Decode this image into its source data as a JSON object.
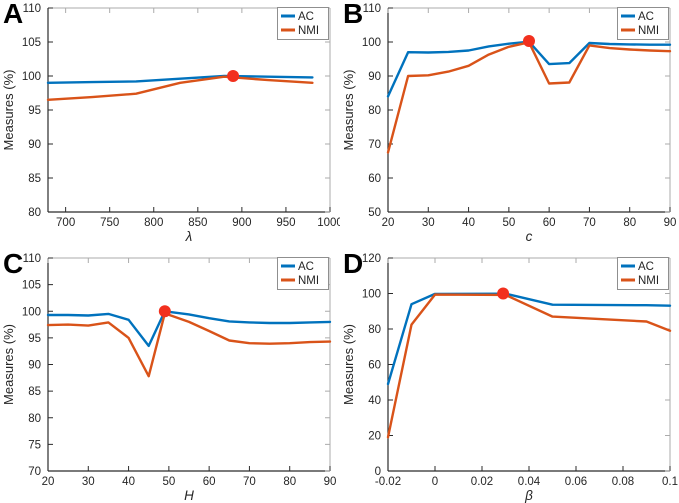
{
  "figure": {
    "background": "#ffffff",
    "description": "Four-panel parameter sensitivity figure, AC and NMI measures vs parameters"
  },
  "colors": {
    "ac_line": "#0072BD",
    "nmi_line": "#D95319",
    "optimum_marker": "#F2301E",
    "axis_dark": "#2b2b2b",
    "axis_light": "#ababab",
    "legend_border": "#8f8f8f",
    "tick_text": "#262626"
  },
  "legend": {
    "position": "top-right",
    "entries": [
      {
        "label": "AC",
        "color": "#0072BD"
      },
      {
        "label": "NMI",
        "color": "#D95319"
      }
    ]
  },
  "chart_data": [
    {
      "letter": "A",
      "type": "line",
      "xlabel": "λ",
      "ylabel": "Measures (%)",
      "xlim": [
        680,
        1000
      ],
      "ylim": [
        80,
        110
      ],
      "xticks": [
        700,
        750,
        800,
        850,
        900,
        950,
        1000
      ],
      "yticks": [
        80,
        85,
        90,
        95,
        100,
        105,
        110
      ],
      "grid": false,
      "x": [
        680,
        730,
        780,
        830,
        880,
        930,
        980
      ],
      "series": [
        {
          "name": "AC",
          "color": "#0072BD",
          "values": [
            99.0,
            99.1,
            99.2,
            99.6,
            100.0,
            99.9,
            99.8
          ]
        },
        {
          "name": "NMI",
          "color": "#D95319",
          "values": [
            96.5,
            96.9,
            97.4,
            99.0,
            99.9,
            99.4,
            99.0
          ]
        }
      ],
      "optimum": {
        "x": 890,
        "y": 100
      }
    },
    {
      "letter": "B",
      "type": "line",
      "xlabel": "c",
      "ylabel": "Measures (%)",
      "xlim": [
        20,
        90
      ],
      "ylim": [
        50,
        110
      ],
      "xticks": [
        20,
        30,
        40,
        50,
        60,
        70,
        80,
        90
      ],
      "yticks": [
        50,
        60,
        70,
        80,
        90,
        100,
        110
      ],
      "grid": false,
      "x": [
        20,
        25,
        30,
        35,
        40,
        45,
        50,
        55,
        60,
        65,
        70,
        75,
        80,
        85,
        90
      ],
      "series": [
        {
          "name": "AC",
          "color": "#0072BD",
          "values": [
            84.0,
            97.0,
            96.9,
            97.1,
            97.5,
            98.7,
            99.5,
            100.1,
            93.5,
            93.8,
            99.7,
            99.4,
            99.3,
            99.2,
            99.2
          ]
        },
        {
          "name": "NMI",
          "color": "#D95319",
          "values": [
            67.5,
            90.0,
            90.2,
            91.3,
            93.0,
            96.3,
            98.6,
            99.9,
            87.8,
            88.1,
            99.0,
            98.2,
            97.8,
            97.5,
            97.3
          ]
        }
      ],
      "optimum": {
        "x": 55,
        "y": 100.3
      }
    },
    {
      "letter": "C",
      "type": "line",
      "xlabel": "H",
      "ylabel": "Measures (%)",
      "xlim": [
        20,
        90
      ],
      "ylim": [
        70,
        110
      ],
      "xticks": [
        20,
        30,
        40,
        50,
        60,
        70,
        80,
        90
      ],
      "yticks": [
        70,
        75,
        80,
        85,
        90,
        95,
        100,
        105,
        110
      ],
      "grid": false,
      "x": [
        20,
        25,
        30,
        35,
        40,
        45,
        49,
        55,
        60,
        65,
        70,
        75,
        80,
        85,
        90
      ],
      "series": [
        {
          "name": "AC",
          "color": "#0072BD",
          "values": [
            99.3,
            99.3,
            99.2,
            99.5,
            98.4,
            93.5,
            100.0,
            99.4,
            98.7,
            98.1,
            97.9,
            97.8,
            97.8,
            97.9,
            98.0
          ]
        },
        {
          "name": "NMI",
          "color": "#D95319",
          "values": [
            97.4,
            97.5,
            97.3,
            97.9,
            95.0,
            87.8,
            99.6,
            98.0,
            96.3,
            94.5,
            94.0,
            93.9,
            94.0,
            94.2,
            94.3
          ]
        }
      ],
      "optimum": {
        "x": 49,
        "y": 100
      }
    },
    {
      "letter": "D",
      "type": "line",
      "xlabel": "β",
      "ylabel": "Measures (%)",
      "xlim": [
        -0.02,
        0.1
      ],
      "ylim": [
        0,
        120
      ],
      "xticks": [
        -0.02,
        0,
        0.02,
        0.04,
        0.06,
        0.08,
        0.1
      ],
      "yticks": [
        0,
        20,
        40,
        60,
        80,
        100,
        120
      ],
      "grid": false,
      "x": [
        -0.02,
        -0.01,
        0,
        0.03,
        0.05,
        0.09,
        0.1
      ],
      "series": [
        {
          "name": "AC",
          "color": "#0072BD",
          "values": [
            49.0,
            94.0,
            99.8,
            99.9,
            93.7,
            93.4,
            93.1
          ]
        },
        {
          "name": "NMI",
          "color": "#D95319",
          "values": [
            19.0,
            82.5,
            99.4,
            99.2,
            87.0,
            84.2,
            79.0
          ]
        }
      ],
      "optimum": {
        "x": 0.029,
        "y": 100
      }
    }
  ]
}
